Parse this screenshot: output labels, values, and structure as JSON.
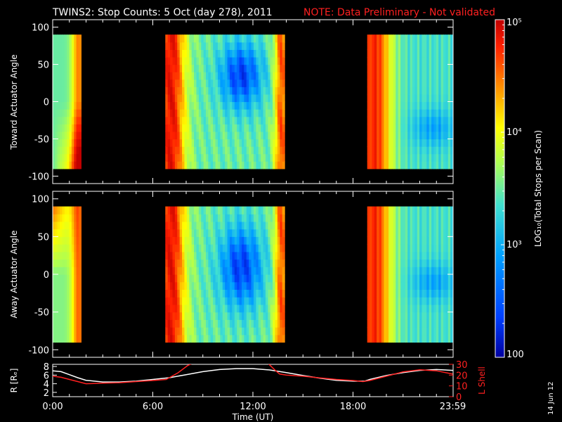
{
  "header": {
    "title": "TWINS2: Stop Counts:  5 Oct (day 278), 2011",
    "note": "NOTE: Data Preliminary - Not validated"
  },
  "date_stamp": "14 Jun 12",
  "colorbar": {
    "label": "LOG₁₀(Total Stops per Scan)",
    "tick_labels": [
      "10⁵",
      "10⁴",
      "10³",
      "100"
    ],
    "tick_values": [
      100000,
      10000,
      1000,
      100
    ],
    "range": [
      100,
      100000
    ],
    "scale": "log",
    "colors": [
      "#0000a0",
      "#0040ff",
      "#00a0ff",
      "#40e0d0",
      "#b0ff50",
      "#ffff00",
      "#ff9000",
      "#ff2000",
      "#c00000"
    ]
  },
  "colors": {
    "background": "#000000",
    "axes": "#ffffff",
    "note": "#ff2020",
    "l_shell_line": "#ff2020",
    "r_line": "#ffffff"
  },
  "chart_data": [
    {
      "type": "heatmap",
      "ylabel": "Toward Actuator Angle",
      "ylim": [
        -110,
        110
      ],
      "y_ticks": [
        "100",
        "50",
        "0",
        "-50",
        "-100"
      ],
      "y_tick_values": [
        100,
        50,
        0,
        -50,
        -100
      ],
      "xlim_hours": [
        0,
        24
      ],
      "data_angle_range": [
        -90,
        90
      ],
      "data_intervals_hours": [
        [
          0.0,
          1.7
        ],
        [
          6.75,
          13.9
        ],
        [
          18.85,
          23.98
        ]
      ],
      "color_scale": "log"
    },
    {
      "type": "heatmap",
      "ylabel": "Away Actuator Angle",
      "ylim": [
        -110,
        110
      ],
      "y_ticks": [
        "100",
        "50",
        "0",
        "-50",
        "-100"
      ],
      "y_tick_values": [
        100,
        50,
        0,
        -50,
        -100
      ],
      "xlim_hours": [
        0,
        24
      ],
      "data_angle_range": [
        -90,
        90
      ],
      "data_intervals_hours": [
        [
          0.0,
          1.7
        ],
        [
          6.75,
          13.9
        ],
        [
          18.85,
          23.98
        ]
      ],
      "color_scale": "log"
    },
    {
      "type": "line",
      "xlabel": "Time (UT)",
      "x_ticks": [
        "0:00",
        "6:00",
        "12:00",
        "18:00",
        "23:59"
      ],
      "x_tick_values": [
        0,
        6,
        12,
        18,
        23.98
      ],
      "ylabel_left": "R [Rₑ]",
      "ylim_left": [
        1,
        8.5
      ],
      "y_ticks_left": [
        "8",
        "6",
        "4",
        "2"
      ],
      "y_tick_values_left": [
        8,
        6,
        4,
        2
      ],
      "ylabel_right": "L Shell",
      "ylim_right": [
        0,
        30
      ],
      "y_ticks_right": [
        "30",
        "20",
        "10",
        "0"
      ],
      "y_tick_values_right": [
        30,
        20,
        10,
        0
      ],
      "series": [
        {
          "axis": "left",
          "x": [
            0,
            0.5,
            1,
            1.5,
            2,
            3,
            4,
            5,
            6,
            7,
            8,
            9,
            10,
            11,
            12,
            13,
            14,
            15,
            16,
            17,
            18,
            18.7,
            19,
            20,
            21,
            22,
            23,
            23.98
          ],
          "y": [
            7.0,
            6.8,
            6.1,
            5.4,
            4.8,
            4.4,
            4.4,
            4.6,
            5.0,
            5.4,
            6.1,
            6.8,
            7.3,
            7.5,
            7.5,
            7.2,
            6.6,
            5.9,
            5.3,
            4.8,
            4.6,
            4.6,
            5.0,
            5.9,
            6.6,
            7.1,
            7.3,
            7.1
          ]
        },
        {
          "axis": "right",
          "x": [
            0,
            0.5,
            1,
            1.5,
            2,
            3,
            4,
            5,
            6,
            6.8,
            7.5,
            8.1,
            8.4,
            12.9,
            13.3,
            13.6,
            14,
            15,
            16,
            17,
            18,
            18.6,
            19,
            20,
            21,
            22,
            23,
            23.98
          ],
          "y": [
            19,
            18,
            16,
            14,
            12,
            12.5,
            13,
            14,
            15,
            16,
            22,
            29,
            31,
            31,
            25,
            21,
            20,
            19,
            17.5,
            16,
            15,
            14,
            15,
            19,
            23,
            25,
            24,
            21
          ]
        }
      ]
    }
  ]
}
